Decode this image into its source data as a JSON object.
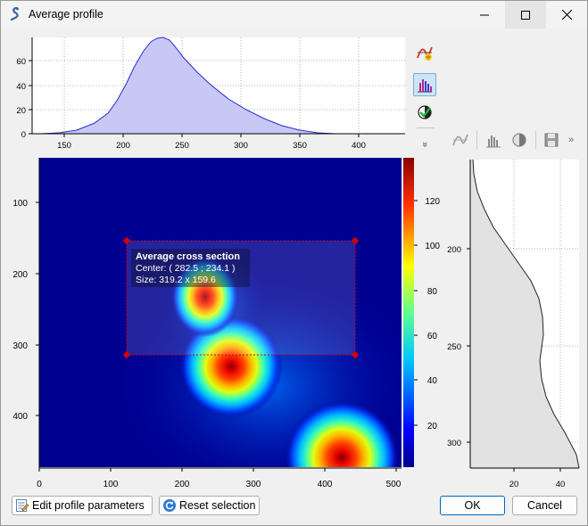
{
  "window": {
    "title": "Average profile",
    "icon": "snake-app-icon",
    "controls": [
      "minimize-icon",
      "maximize-icon",
      "close-icon"
    ]
  },
  "toolbar": {
    "items": [
      {
        "name": "add-profile-icon",
        "active": false
      },
      {
        "name": "bar-chart-icon",
        "active": true
      },
      {
        "name": "contrast-check-icon",
        "active": false
      }
    ],
    "overflow": "»"
  },
  "right_toolbar": {
    "items": [
      "curve-tool-icon",
      "histogram-icon",
      "contrast-icon",
      "save-icon"
    ],
    "overflow": "»"
  },
  "top_profile": {
    "x_ticks": [
      "150",
      "200",
      "250",
      "300",
      "350",
      "400"
    ],
    "y_ticks": [
      "0",
      "20",
      "40",
      "60"
    ]
  },
  "right_profile": {
    "x_ticks": [
      "20",
      "40"
    ],
    "y_ticks": [
      "200",
      "250",
      "300"
    ]
  },
  "image": {
    "x_ticks": [
      "0",
      "100",
      "200",
      "300",
      "400",
      "500"
    ],
    "y_ticks": [
      "100",
      "200",
      "300",
      "400"
    ],
    "colorbar_ticks": [
      "20",
      "40",
      "60",
      "80",
      "100",
      "120"
    ]
  },
  "selection": {
    "title": "Average cross section",
    "center": "Center: ( 282.5 ; 234.1 )",
    "size": "Size: 319.2 x 159.6"
  },
  "buttons": {
    "edit_profile": "Edit profile parameters",
    "reset_selection": "Reset selection",
    "ok": "OK",
    "cancel": "Cancel"
  },
  "colors": {
    "profile_fill": "#c8c8f5",
    "profile_line": "#2b2bd0",
    "selection": "#d40000",
    "accent": "#0067c0"
  }
}
